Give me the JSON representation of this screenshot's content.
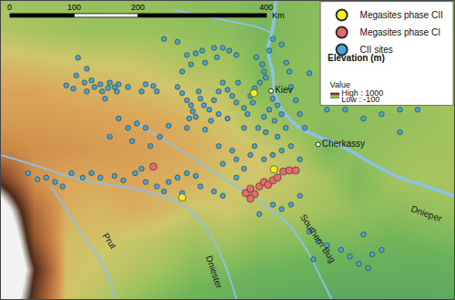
{
  "chart_data": {
    "type": "map",
    "xlim": [
      25.9,
      33.6
    ],
    "ylim": [
      46.7,
      52.1
    ],
    "tick_labels": false,
    "grid": false,
    "legend": "top right",
    "elevation": {
      "title": "Elevation (m)",
      "colorbar_title": "Value",
      "range": [
        -100,
        1000
      ],
      "ticks": [
        {
          "value": 1000,
          "label": "High : 1000"
        },
        {
          "value": -100,
          "label": "Low : -100"
        }
      ],
      "x": [
        25.9,
        26.45,
        27.0,
        27.55,
        28.1,
        28.65,
        29.2,
        29.75,
        30.3,
        30.85,
        31.4,
        31.95,
        32.5,
        33.05,
        33.6
      ],
      "y": [
        52.1,
        51.56,
        51.02,
        50.48,
        49.94,
        49.4,
        48.86,
        48.32,
        47.78,
        47.24,
        46.7
      ],
      "z": [
        [
          170,
          160,
          160,
          150,
          150,
          150,
          140,
          140,
          120,
          130,
          140,
          150,
          160,
          170,
          170
        ],
        [
          200,
          180,
          170,
          160,
          160,
          160,
          150,
          140,
          110,
          130,
          140,
          150,
          160,
          170,
          170
        ],
        [
          250,
          240,
          230,
          220,
          220,
          200,
          180,
          170,
          120,
          140,
          150,
          160,
          170,
          180,
          180
        ],
        [
          300,
          300,
          280,
          270,
          260,
          240,
          220,
          200,
          130,
          140,
          140,
          150,
          160,
          170,
          180
        ],
        [
          330,
          330,
          320,
          310,
          300,
          290,
          260,
          230,
          180,
          150,
          140,
          140,
          150,
          160,
          170
        ],
        [
          400,
          360,
          350,
          330,
          320,
          300,
          280,
          250,
          230,
          200,
          120,
          150,
          160,
          170,
          170
        ],
        [
          700,
          350,
          300,
          290,
          300,
          280,
          270,
          230,
          230,
          210,
          180,
          120,
          170,
          180,
          180
        ],
        [
          1200,
          500,
          280,
          260,
          280,
          260,
          220,
          230,
          200,
          190,
          170,
          150,
          140,
          150,
          160
        ],
        [
          1500,
          600,
          250,
          240,
          220,
          200,
          170,
          180,
          150,
          140,
          120,
          120,
          100,
          110,
          120
        ],
        [
          1600,
          800,
          250,
          220,
          200,
          170,
          130,
          120,
          100,
          90,
          80,
          70,
          70,
          60,
          70
        ],
        [
          1400,
          700,
          230,
          200,
          160,
          120,
          90,
          70,
          50,
          40,
          30,
          20,
          30,
          30,
          40
        ]
      ]
    },
    "series": [
      {
        "name": "Megasites phase CII",
        "color": "#f4ef1c",
        "marker": "circle",
        "x": [
          30.2,
          30.54,
          28.98
        ],
        "y": [
          50.43,
          49.05,
          48.54
        ]
      },
      {
        "name": "Megasites phase CI",
        "color": "#e8686c",
        "marker": "circle",
        "x": [
          28.49,
          30.06,
          30.14,
          30.21,
          30.29,
          30.37,
          30.44,
          30.52,
          30.6,
          30.7,
          30.8,
          30.14,
          30.91
        ],
        "y": [
          49.1,
          48.62,
          48.7,
          48.6,
          48.74,
          48.82,
          48.77,
          48.85,
          48.9,
          49.01,
          49.03,
          48.52,
          49.03
        ]
      },
      {
        "name": "CII sites",
        "color": "#43a6d8",
        "marker": "circle",
        "x": [
          27.21,
          27.18,
          27.32,
          27.44,
          27.49,
          27.59,
          27.36,
          27.62,
          27.72,
          27.75,
          27.83,
          27.9,
          27.87,
          27.67,
          28.06,
          27.36,
          27.01,
          27.13,
          28.29,
          28.36,
          28.49,
          28.55,
          28.67,
          28.9,
          29.06,
          29.21,
          29.32,
          29.52,
          29.67,
          29.78,
          29.9,
          29.57,
          29.37,
          29.13,
          28.98,
          28.9,
          28.98,
          29.06,
          29.13,
          29.16,
          29.26,
          29.29,
          29.35,
          29.21,
          29.1,
          29.44,
          29.52,
          29.6,
          29.67,
          29.75,
          29.83,
          29.9,
          29.6,
          29.47,
          29.06,
          29.37,
          29.75,
          30.03,
          30.14,
          29.93,
          30.24,
          30.34,
          30.37,
          30.4,
          30.3,
          30.21,
          30.52,
          30.6,
          30.46,
          30.37,
          30.27,
          30.4,
          30.55,
          30.67,
          30.74,
          30.6,
          30.18,
          30.09,
          30.03,
          30.75,
          30.8,
          30.83,
          30.91,
          30.98,
          31.06,
          30.52,
          30.67,
          30.46,
          27.9,
          28.06,
          28.21,
          28.36,
          27.75,
          28.13,
          28.44,
          28.6,
          28.75,
          27.1,
          27.29,
          27.44,
          27.59,
          27.83,
          27.98,
          28.18,
          28.29,
          28.36,
          28.55,
          28.75,
          28.9,
          29.06,
          29.21,
          26.36,
          26.52,
          26.67,
          26.82,
          26.95,
          28.67,
          28.98,
          29.29,
          29.52,
          29.67,
          29.83,
          29.9,
          30.03,
          30.14,
          30.21,
          30.37,
          30.52,
          30.67,
          30.83,
          30.98,
          30.67,
          30.52,
          30.29,
          30.83,
          30.98,
          29.9,
          29.67,
          29.6,
          31.14,
          31.29,
          31.44,
          31.68,
          31.83,
          31.98,
          32.14,
          32.21,
          32.06,
          32.37,
          31.21,
          32.98,
          32.68,
          32.37,
          32.06,
          31.75,
          31.44,
          31.14,
          32.68
        ],
        "y": [
          51.07,
          50.75,
          50.62,
          50.66,
          50.54,
          50.59,
          50.46,
          50.46,
          50.52,
          50.62,
          50.54,
          50.59,
          50.46,
          50.33,
          50.54,
          50.87,
          50.57,
          50.51,
          50.46,
          50.59,
          50.56,
          50.46,
          51.41,
          51.36,
          51.12,
          51.15,
          51.2,
          51.25,
          51.25,
          51.2,
          51.12,
          51.08,
          50.98,
          50.95,
          50.82,
          50.54,
          50.43,
          50.3,
          50.21,
          50.1,
          50.46,
          50.33,
          50.21,
          50.0,
          49.97,
          50.13,
          50.3,
          50.46,
          50.62,
          50.49,
          50.38,
          50.26,
          50.05,
          49.93,
          49.8,
          49.77,
          49.97,
          50.16,
          50.38,
          50.62,
          51.08,
          50.95,
          50.82,
          50.71,
          50.62,
          50.52,
          50.33,
          50.21,
          50.13,
          50.0,
          49.8,
          49.72,
          49.93,
          50.05,
          49.8,
          49.64,
          50.26,
          50.05,
          49.8,
          50.98,
          50.82,
          50.54,
          50.3,
          50.05,
          49.8,
          51.41,
          51.31,
          51.2,
          49.97,
          49.8,
          49.88,
          49.8,
          49.64,
          49.56,
          49.47,
          49.64,
          49.84,
          48.98,
          48.9,
          48.98,
          48.9,
          48.93,
          48.85,
          48.98,
          49.06,
          48.82,
          48.74,
          48.82,
          48.9,
          48.98,
          48.93,
          48.98,
          48.87,
          48.9,
          48.82,
          48.74,
          48.65,
          48.62,
          48.74,
          48.65,
          48.57,
          49.39,
          49.23,
          49.06,
          49.31,
          49.47,
          49.23,
          49.31,
          49.39,
          49.47,
          49.23,
          48.33,
          48.41,
          48.24,
          48.41,
          48.57,
          48.9,
          49.15,
          49.47,
          47.92,
          47.75,
          47.67,
          47.59,
          47.47,
          47.34,
          47.26,
          47.51,
          47.87,
          47.59,
          47.42,
          50.13,
          50.13,
          50.05,
          49.97,
          50.13,
          50.13,
          50.79,
          49.72
        ]
      }
    ],
    "rivers": [
      {
        "name": "Dnieper",
        "color": "#8cc2e8",
        "x": [
          30.57,
          30.52,
          30.44,
          30.52,
          30.55,
          30.67,
          30.98,
          31.37,
          31.83,
          32.21,
          32.68,
          33.14,
          33.6
        ],
        "y": [
          52.1,
          51.61,
          51.2,
          50.79,
          50.46,
          50.13,
          49.8,
          49.61,
          49.39,
          49.15,
          48.9,
          48.74,
          48.57
        ],
        "label_at": [
          33.14,
          48.24
        ]
      },
      {
        "name": "Southern Bug",
        "color": "#8cc2e8",
        "x": [
          28.21,
          28.83,
          29.44,
          29.9,
          30.37,
          30.83,
          31.14,
          31.37,
          31.52
        ],
        "y": [
          49.88,
          49.47,
          49.06,
          48.74,
          48.41,
          48.0,
          47.51,
          47.01,
          46.7
        ],
        "label_at": [
          31.29,
          47.8
        ]
      },
      {
        "name": "Dniester",
        "color": "#8cc2e8",
        "x": [
          25.9,
          26.52,
          27.13,
          27.75,
          28.36,
          28.98,
          29.37,
          29.67,
          29.9
        ],
        "y": [
          49.31,
          49.11,
          48.9,
          48.77,
          48.65,
          48.41,
          48.0,
          47.42,
          46.7
        ],
        "label_at": [
          29.52,
          47.18
        ]
      },
      {
        "name": "Prut",
        "color": "#8cc2e8",
        "x": [
          26.75,
          27.06,
          27.36,
          27.67,
          27.83
        ],
        "y": [
          48.74,
          48.24,
          47.75,
          47.26,
          46.7
        ],
        "label_at": [
          27.75,
          47.75
        ]
      },
      {
        "color": "#8cc2e8",
        "x": [
          28.83,
          29.6,
          30.21,
          30.49
        ],
        "y": [
          51.94,
          51.77,
          51.64,
          51.53
        ]
      }
    ],
    "cities": [
      {
        "name": "Kiev",
        "x": 30.49,
        "y": 50.47
      },
      {
        "name": "Cherkassy",
        "x": 31.29,
        "y": 49.5
      }
    ],
    "scale_bar": {
      "ticks": [
        0,
        100,
        200,
        400
      ],
      "unit": "Km"
    }
  }
}
